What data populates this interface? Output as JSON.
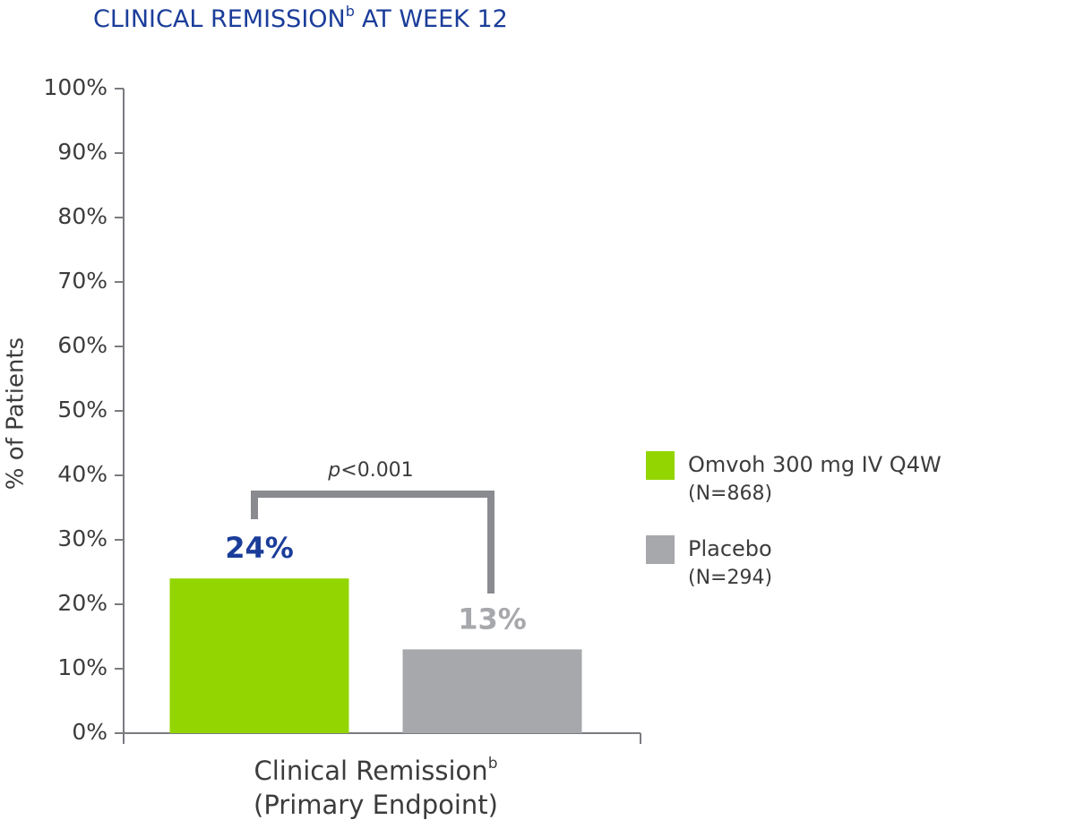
{
  "chart_data": {
    "type": "bar",
    "title": {
      "text": "CLINICAL REMISSION",
      "superscript": "b",
      "suffix": "AT WEEK 12"
    },
    "y_label": "% of Patients",
    "categories": [
      "Clinical Remission"
    ],
    "category_superscripts": [
      "b"
    ],
    "category_subtitles": [
      "(Primary Endpoint)"
    ],
    "series": [
      {
        "name": "Omvoh 300 mg IV Q4W",
        "n_label": "(N=868)",
        "color": "#93d500",
        "label_color": "#1b3d9a",
        "values": [
          24
        ],
        "value_labels": [
          "24%"
        ]
      },
      {
        "name": "Placebo",
        "n_label": "(N=294)",
        "color": "#a7a8ac",
        "label_color": "#a7a8ac",
        "values": [
          13
        ],
        "value_labels": [
          "13%"
        ]
      }
    ],
    "annotation": {
      "italic": "p",
      "text": "<0.001"
    },
    "ylim": [
      0,
      100
    ],
    "yticks": [
      {
        "value": 0,
        "label": "0%"
      },
      {
        "value": 10,
        "label": "10%"
      },
      {
        "value": 20,
        "label": "20%"
      },
      {
        "value": 30,
        "label": "30%"
      },
      {
        "value": 40,
        "label": "40%"
      },
      {
        "value": 50,
        "label": "50%"
      },
      {
        "value": 60,
        "label": "60%"
      },
      {
        "value": 70,
        "label": "70%"
      },
      {
        "value": 80,
        "label": "80%"
      },
      {
        "value": 90,
        "label": "90%"
      },
      {
        "value": 100,
        "label": "100%"
      }
    ],
    "legend": "right"
  }
}
